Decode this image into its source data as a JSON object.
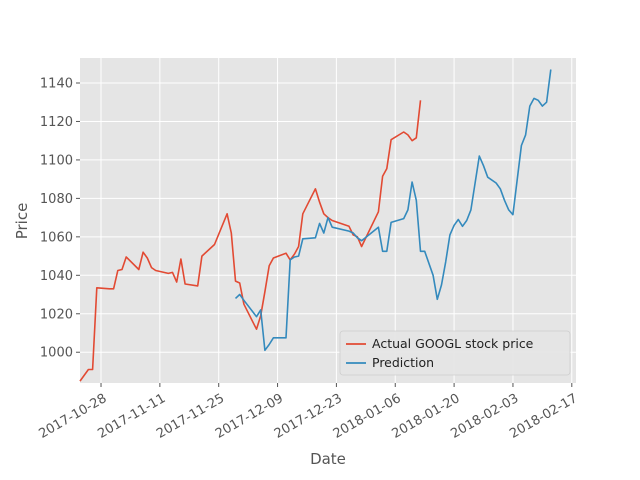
{
  "chart_data": {
    "type": "line",
    "title": "",
    "xlabel": "Date",
    "ylabel": "Price",
    "x_axis": "date",
    "xlim": [
      "2017-10-23",
      "2018-02-18"
    ],
    "ylim": [
      984,
      1153
    ],
    "x_ticks": [
      "2017-10-28",
      "2017-11-11",
      "2017-11-25",
      "2017-12-09",
      "2017-12-23",
      "2018-01-06",
      "2018-01-20",
      "2018-02-03",
      "2018-02-17"
    ],
    "y_ticks": [
      1000,
      1020,
      1040,
      1060,
      1080,
      1100,
      1120,
      1140
    ],
    "grid": true,
    "legend_position": "lower-right",
    "series": [
      {
        "name": "Actual GOOGL stock price",
        "color": "#E24A33",
        "points": [
          [
            "2017-10-23",
            985
          ],
          [
            "2017-10-25",
            991
          ],
          [
            "2017-10-26",
            991
          ],
          [
            "2017-10-27",
            1033.5
          ],
          [
            "2017-10-30",
            1033
          ],
          [
            "2017-10-31",
            1033
          ],
          [
            "2017-11-01",
            1042.5
          ],
          [
            "2017-11-02",
            1043
          ],
          [
            "2017-11-03",
            1049.5
          ],
          [
            "2017-11-06",
            1043
          ],
          [
            "2017-11-07",
            1052
          ],
          [
            "2017-11-08",
            1049
          ],
          [
            "2017-11-09",
            1044
          ],
          [
            "2017-11-10",
            1042.5
          ],
          [
            "2017-11-13",
            1041
          ],
          [
            "2017-11-14",
            1041.5
          ],
          [
            "2017-11-15",
            1036.5
          ],
          [
            "2017-11-16",
            1048.5
          ],
          [
            "2017-11-17",
            1035.5
          ],
          [
            "2017-11-20",
            1034.5
          ],
          [
            "2017-11-21",
            1050
          ],
          [
            "2017-11-24",
            1056
          ],
          [
            "2017-11-27",
            1072
          ],
          [
            "2017-11-28",
            1062
          ],
          [
            "2017-11-29",
            1037
          ],
          [
            "2017-11-30",
            1036
          ],
          [
            "2017-12-01",
            1025
          ],
          [
            "2017-12-04",
            1012
          ],
          [
            "2017-12-05",
            1019
          ],
          [
            "2017-12-06",
            1031.5
          ],
          [
            "2017-12-07",
            1045
          ],
          [
            "2017-12-08",
            1049
          ],
          [
            "2017-12-11",
            1051.5
          ],
          [
            "2017-12-12",
            1048
          ],
          [
            "2017-12-13",
            1051
          ],
          [
            "2017-12-14",
            1055
          ],
          [
            "2017-12-15",
            1072
          ],
          [
            "2017-12-18",
            1085
          ],
          [
            "2017-12-19",
            1078
          ],
          [
            "2017-12-20",
            1072
          ],
          [
            "2017-12-21",
            1070
          ],
          [
            "2017-12-22",
            1068.5
          ],
          [
            "2017-12-26",
            1065.5
          ],
          [
            "2017-12-27",
            1061
          ],
          [
            "2017-12-28",
            1060
          ],
          [
            "2017-12-29",
            1055
          ],
          [
            "2018-01-02",
            1073
          ],
          [
            "2018-01-03",
            1091.5
          ],
          [
            "2018-01-04",
            1095.5
          ],
          [
            "2018-01-05",
            1110.5
          ],
          [
            "2018-01-08",
            1114.5
          ],
          [
            "2018-01-09",
            1113
          ],
          [
            "2018-01-10",
            1110
          ],
          [
            "2018-01-11",
            1111.5
          ],
          [
            "2018-01-12",
            1131
          ]
        ]
      },
      {
        "name": "Prediction",
        "color": "#348ABD",
        "points": [
          [
            "2017-11-29",
            1028
          ],
          [
            "2017-11-30",
            1030
          ],
          [
            "2017-12-01",
            1027
          ],
          [
            "2017-12-04",
            1018.5
          ],
          [
            "2017-12-05",
            1022
          ],
          [
            "2017-12-06",
            1001
          ],
          [
            "2017-12-07",
            1004
          ],
          [
            "2017-12-08",
            1007.5
          ],
          [
            "2017-12-11",
            1007.5
          ],
          [
            "2017-12-12",
            1048
          ],
          [
            "2017-12-13",
            1049.5
          ],
          [
            "2017-12-14",
            1050
          ],
          [
            "2017-12-15",
            1059
          ],
          [
            "2017-12-18",
            1059.5
          ],
          [
            "2017-12-19",
            1067
          ],
          [
            "2017-12-20",
            1062
          ],
          [
            "2017-12-21",
            1070
          ],
          [
            "2017-12-22",
            1065
          ],
          [
            "2017-12-26",
            1063
          ],
          [
            "2017-12-27",
            1062
          ],
          [
            "2017-12-28",
            1059.5
          ],
          [
            "2017-12-29",
            1058
          ],
          [
            "2018-01-02",
            1065
          ],
          [
            "2018-01-03",
            1052.5
          ],
          [
            "2018-01-04",
            1052.5
          ],
          [
            "2018-01-05",
            1067.5
          ],
          [
            "2018-01-08",
            1069.5
          ],
          [
            "2018-01-09",
            1074
          ],
          [
            "2018-01-10",
            1088.5
          ],
          [
            "2018-01-11",
            1079
          ],
          [
            "2018-01-12",
            1052.5
          ],
          [
            "2018-01-13",
            1052.5
          ],
          [
            "2018-01-15",
            1040
          ],
          [
            "2018-01-16",
            1027.5
          ],
          [
            "2018-01-17",
            1035
          ],
          [
            "2018-01-18",
            1047
          ],
          [
            "2018-01-19",
            1061
          ],
          [
            "2018-01-20",
            1066
          ],
          [
            "2018-01-21",
            1069
          ],
          [
            "2018-01-22",
            1065.5
          ],
          [
            "2018-01-23",
            1068.5
          ],
          [
            "2018-01-24",
            1074
          ],
          [
            "2018-01-26",
            1102
          ],
          [
            "2018-01-27",
            1097
          ],
          [
            "2018-01-28",
            1091
          ],
          [
            "2018-01-30",
            1088
          ],
          [
            "2018-01-31",
            1085
          ],
          [
            "2018-02-01",
            1079
          ],
          [
            "2018-02-02",
            1074
          ],
          [
            "2018-02-03",
            1071.5
          ],
          [
            "2018-02-05",
            1107.5
          ],
          [
            "2018-02-06",
            1113
          ],
          [
            "2018-02-07",
            1128
          ],
          [
            "2018-02-08",
            1132
          ],
          [
            "2018-02-09",
            1131
          ],
          [
            "2018-02-10",
            1128
          ],
          [
            "2018-02-11",
            1130
          ],
          [
            "2018-02-12",
            1147
          ]
        ]
      }
    ]
  }
}
